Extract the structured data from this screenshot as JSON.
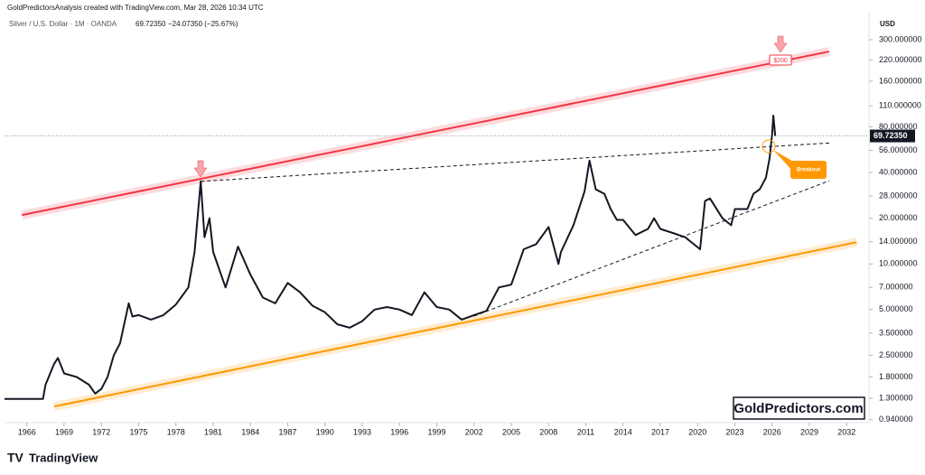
{
  "chart_data": {
    "type": "line",
    "header": "GoldPredictorsAnalysis created with TradingView.com, Mar 28, 2026 10:34 UTC",
    "legend_price": "69.72350",
    "legend_change": "−24.07350 (−25.67%)",
    "axis_unit": "USD",
    "watermark": "GoldPredictors.com",
    "brand": "TradingView",
    "annotations": [
      "$200",
      "Breakout"
    ],
    "log_scale": true,
    "grid": false,
    "xlim": [
      1964.2,
      2033.8
    ],
    "xticks": [
      1966,
      1969,
      1972,
      1975,
      1978,
      1981,
      1984,
      1987,
      1990,
      1993,
      1996,
      1999,
      2002,
      2005,
      2008,
      2011,
      2014,
      2017,
      2020,
      2023,
      2026,
      2029,
      2032
    ],
    "ylim": [
      0.9,
      417
    ],
    "yticks": [
      {
        "value": 300,
        "label": "300.000000"
      },
      {
        "value": 220,
        "label": "220.000000"
      },
      {
        "value": 160,
        "label": "160.000000"
      },
      {
        "value": 110,
        "label": "110.000000"
      },
      {
        "value": 80,
        "label": "80.000000"
      },
      {
        "value": 56,
        "label": "56.000000"
      },
      {
        "value": 40,
        "label": "40.000000"
      },
      {
        "value": 28,
        "label": "28.000000"
      },
      {
        "value": 20,
        "label": "20.000000"
      },
      {
        "value": 14,
        "label": "14.000000"
      },
      {
        "value": 10,
        "label": "10.000000"
      },
      {
        "value": 7,
        "label": "7.000000"
      },
      {
        "value": 5,
        "label": "5.000000"
      },
      {
        "value": 3.5,
        "label": "3.500000"
      },
      {
        "value": 2.5,
        "label": "2.500000"
      },
      {
        "value": 1.8,
        "label": "1.800000"
      },
      {
        "value": 1.3,
        "label": "1.300000"
      },
      {
        "value": 0.94,
        "label": "0.940000"
      }
    ],
    "last_price": {
      "value": 69.7235,
      "label": "69.72350"
    },
    "x": [
      1964.2,
      1967.3,
      1967.5,
      1968.2,
      1968.5,
      1969,
      1970,
      1971,
      1971.5,
      1972,
      1972.5,
      1973,
      1973.5,
      1974.2,
      1974.5,
      1975,
      1976,
      1977,
      1978,
      1979,
      1979.5,
      1980,
      1980.3,
      1980.7,
      1981,
      1982,
      1983,
      1984,
      1985,
      1986,
      1987,
      1988,
      1989,
      1990,
      1991,
      1992,
      1993,
      1994,
      1995,
      1996,
      1997,
      1998,
      1999,
      2000,
      2001,
      2002,
      2003,
      2004,
      2005,
      2006,
      2007,
      2008,
      2008.8,
      2009,
      2010,
      2010.9,
      2011.3,
      2011.8,
      2012.5,
      2013,
      2013.5,
      2014,
      2015,
      2016,
      2016.5,
      2017,
      2018,
      2019,
      2020.2,
      2020.6,
      2021,
      2022,
      2022.7,
      2023,
      2024,
      2024.5,
      2025,
      2025.5,
      2025.8,
      2026,
      2026.1,
      2026.25
    ],
    "series": [
      {
        "name": "Silver / U.S. Dollar · 1M · OANDA",
        "color": "#131722",
        "values": [
          1.29,
          1.29,
          1.6,
          2.2,
          2.4,
          1.9,
          1.8,
          1.6,
          1.4,
          1.5,
          1.8,
          2.5,
          3.0,
          5.5,
          4.5,
          4.6,
          4.3,
          4.6,
          5.4,
          7.0,
          12,
          35,
          15,
          20,
          12,
          7,
          13,
          8.5,
          6.0,
          5.5,
          7.5,
          6.5,
          5.3,
          4.8,
          4.0,
          3.8,
          4.2,
          5.0,
          5.2,
          5.0,
          4.6,
          6.5,
          5.2,
          5.0,
          4.3,
          4.6,
          4.9,
          7.0,
          7.3,
          12.5,
          13.5,
          17.5,
          10,
          12,
          18,
          30,
          48,
          31,
          29,
          23,
          19.5,
          19.5,
          15.5,
          17,
          20,
          17,
          16,
          15,
          12.5,
          26,
          27,
          20,
          18,
          23,
          23,
          29,
          31,
          37,
          50,
          72,
          95,
          69.7235
        ]
      }
    ],
    "trendlines": [
      {
        "x": [
          1965.6,
          2030.6
        ],
        "values": [
          21,
          251
        ],
        "color": "#f23645",
        "dashed": false
      },
      {
        "x": [
          1968.2,
          2032.8
        ],
        "values": [
          1.15,
          13.9
        ],
        "color": "#ff9800",
        "dashed": false
      },
      {
        "x": [
          1980,
          2030.8
        ],
        "values": [
          35,
          62.8
        ],
        "color": "#131722",
        "dashed": true
      },
      {
        "x": [
          2002,
          2030.6
        ],
        "values": [
          4.53,
          35.3
        ],
        "color": "#131722",
        "dashed": true
      }
    ]
  }
}
